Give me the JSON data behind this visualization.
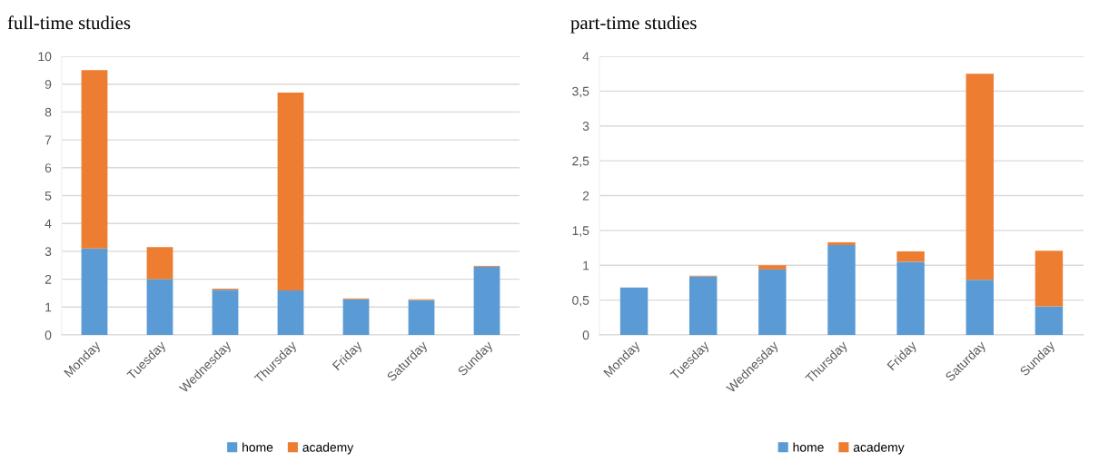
{
  "chart_data": [
    {
      "type": "bar",
      "title": "full-time studies",
      "stacked": true,
      "categories": [
        "Monday",
        "Tuesday",
        "Wednesday",
        "Thursday",
        "Friday",
        "Saturday",
        "Sunday"
      ],
      "series": [
        {
          "name": "home",
          "color": "#5b9bd5",
          "values": [
            3.1,
            2.0,
            1.62,
            1.6,
            1.28,
            1.25,
            2.45
          ]
        },
        {
          "name": "academy",
          "color": "#ed7d31",
          "values": [
            6.4,
            1.15,
            0.04,
            7.1,
            0.03,
            0.03,
            0.03
          ]
        }
      ],
      "ylim": [
        0,
        10
      ],
      "yticks": [
        0,
        1,
        2,
        3,
        4,
        5,
        6,
        7,
        8,
        9,
        10
      ],
      "grid": "y",
      "legend": "bottom"
    },
    {
      "type": "bar",
      "title": "part-time studies",
      "stacked": true,
      "categories": [
        "Monday",
        "Tuesday",
        "Wednesday",
        "Thursday",
        "Friday",
        "Saturday",
        "Sunday"
      ],
      "series": [
        {
          "name": "home",
          "color": "#5b9bd5",
          "values": [
            0.68,
            0.84,
            0.94,
            1.29,
            1.05,
            0.79,
            0.41
          ]
        },
        {
          "name": "academy",
          "color": "#ed7d31",
          "values": [
            0,
            0.01,
            0.06,
            0.04,
            0.15,
            2.96,
            0.8
          ]
        }
      ],
      "ylim": [
        0,
        4
      ],
      "yticks": [
        0,
        {
          "value": 0.5,
          "label": "0,5"
        },
        1,
        {
          "value": 1.5,
          "label": "1,5"
        },
        2,
        {
          "value": 2.5,
          "label": "2,5"
        },
        3,
        {
          "value": 3.5,
          "label": "3,5"
        },
        4
      ],
      "grid": "y",
      "legend": "bottom"
    }
  ]
}
